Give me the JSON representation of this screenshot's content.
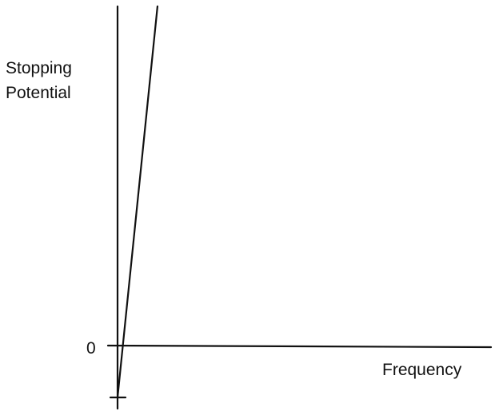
{
  "chart_data": {
    "type": "line",
    "title": "",
    "ylabel_lines": [
      "Stopping",
      "Potential"
    ],
    "xlabel": "Frequency",
    "y_tick_labels": [
      "0"
    ],
    "series": [
      {
        "x": [
          0,
          1
        ],
        "y": [
          -1,
          8.5
        ]
      }
    ],
    "xlim": [
      0,
      8.03
    ],
    "ylim": [
      -1,
      8.5
    ],
    "x_axis_at_y": 0,
    "grid": false,
    "legend": "none",
    "colors": {
      "line": "#111111",
      "background": "#ffffff"
    }
  }
}
